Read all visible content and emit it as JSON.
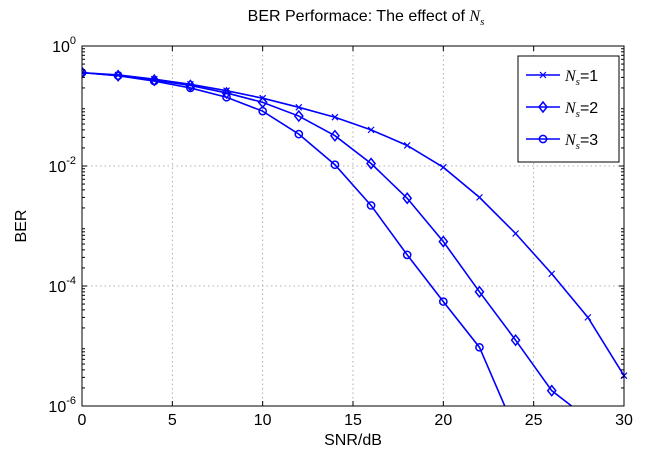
{
  "chart_data": {
    "type": "line",
    "title_text": "BER Performace: The effect of ",
    "title_math": "N",
    "title_math_sub": "s",
    "xlabel": "SNR/dB",
    "ylabel": "BER",
    "xlim": [
      0,
      30
    ],
    "ylim": [
      1e-06,
      1
    ],
    "yscale": "log",
    "grid": true,
    "legend_position": "top-right",
    "x_ticks": [
      "0",
      "5",
      "10",
      "15",
      "20",
      "25",
      "30"
    ],
    "y_tick_exponents": [
      "0",
      "-2",
      "-4",
      "-6"
    ],
    "y_tick_base": "10",
    "line_color": "#0000ff",
    "series": [
      {
        "name_math": "N",
        "name_sub": "s",
        "name_suffix": "=1",
        "marker": "x",
        "x": [
          0,
          2,
          4,
          6,
          8,
          10,
          12,
          14,
          16,
          18,
          20,
          22,
          24,
          26,
          28,
          30
        ],
        "y": [
          0.36,
          0.33,
          0.28,
          0.23,
          0.18,
          0.135,
          0.095,
          0.065,
          0.04,
          0.022,
          0.0095,
          0.003,
          0.00075,
          0.00016,
          3e-05,
          3.2e-06
        ]
      },
      {
        "name_math": "N",
        "name_sub": "s",
        "name_suffix": "=2",
        "marker": "diamond",
        "x": [
          0,
          2,
          4,
          6,
          8,
          10,
          12,
          14,
          16,
          18,
          20,
          22,
          24,
          26,
          27.1
        ],
        "y": [
          0.36,
          0.32,
          0.27,
          0.22,
          0.165,
          0.115,
          0.068,
          0.032,
          0.011,
          0.0029,
          0.00055,
          8e-05,
          1.25e-05,
          1.8e-06,
          1e-06
        ]
      },
      {
        "name_math": "N",
        "name_sub": "s",
        "name_suffix": "=3",
        "marker": "circle",
        "x": [
          0,
          2,
          4,
          6,
          8,
          10,
          12,
          14,
          16,
          18,
          20,
          22,
          23.4
        ],
        "y": [
          0.36,
          0.32,
          0.26,
          0.2,
          0.14,
          0.082,
          0.034,
          0.0105,
          0.0022,
          0.00033,
          5.5e-05,
          9.5e-06,
          1e-06
        ]
      }
    ]
  }
}
